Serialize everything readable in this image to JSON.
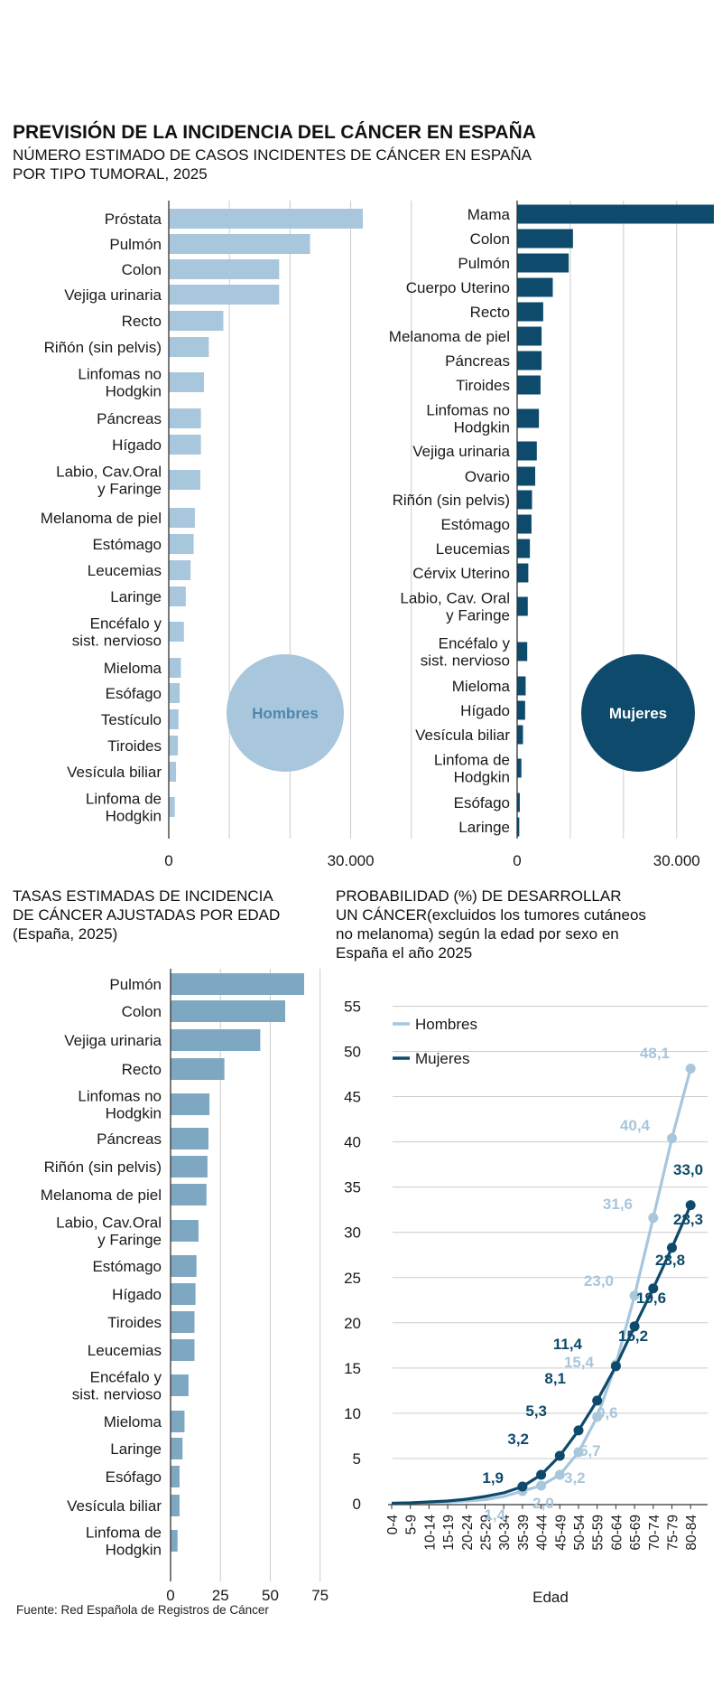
{
  "header": {
    "title": "PREVISIÓN DE LA INCIDENCIA DEL CÁNCER EN ESPAÑA",
    "subtitle": [
      "NÚMERO  ESTIMADO DE CASOS INCIDENTES DE CÁNCER EN ESPAÑA",
      "POR TIPO TUMORAL, 2025"
    ]
  },
  "colors": {
    "hombres": "#a8c6dc",
    "mujeres": "#0e4a6b",
    "tasas": "#7ea7c2",
    "axis": "#333333",
    "grid": "#cccccc"
  },
  "chart_data": [
    {
      "id": "hombres_casos",
      "type": "bar",
      "orientation": "horizontal",
      "badge": "Hombres",
      "categories": [
        "Próstata",
        "Pulmón",
        "Colon",
        "Vejiga urinaria",
        "Recto",
        "Riñón (sin pelvis)",
        "Linfomas no\nHodgkin",
        "Páncreas",
        "Hígado",
        "Labio, Cav.Oral\ny Faringe",
        "Melanoma de piel",
        "Estómago",
        "Leucemias",
        "Laringe",
        "Encéfalo y\nsist. nervioso",
        "Mieloma",
        "Esófago",
        "Testículo",
        "Tiroides",
        "Vesícula biliar",
        "Linfoma de\nHodgkin"
      ],
      "values": [
        32000,
        23300,
        18200,
        18200,
        9000,
        6600,
        5800,
        5300,
        5300,
        5200,
        4300,
        4100,
        3600,
        2800,
        2500,
        2000,
        1800,
        1600,
        1500,
        1200,
        1000
      ],
      "xlim": [
        0,
        45000
      ],
      "ticks": [
        0,
        30000
      ],
      "tick_labels": [
        "0",
        "30.000"
      ],
      "grid": true
    },
    {
      "id": "mujeres_casos",
      "type": "bar",
      "orientation": "horizontal",
      "badge": "Mujeres",
      "categories": [
        "Mama",
        "Colon",
        "Pulmón",
        "Cuerpo Uterino",
        "Recto",
        "Melanoma de piel",
        "Páncreas",
        "Tiroides",
        "Linfomas no\nHodgkin",
        "Vejiga urinaria",
        "Ovario",
        "Riñón (sin pelvis)",
        "Estómago",
        "Leucemias",
        "Cérvix Uterino",
        "Labio, Cav. Oral\ny Faringe",
        "Encéfalo y\nsist. nervioso",
        "Mieloma",
        "Hígado",
        "Vesícula biliar",
        "Linfoma de\nHodgkin",
        "Esófago",
        "Laringe"
      ],
      "values": [
        37000,
        10500,
        9700,
        6700,
        4900,
        4600,
        4600,
        4400,
        4100,
        3700,
        3400,
        2800,
        2700,
        2400,
        2100,
        2000,
        1900,
        1600,
        1500,
        1100,
        800,
        500,
        400
      ],
      "xlim": [
        0,
        45000
      ],
      "ticks": [
        0,
        30000
      ],
      "tick_labels": [
        "0",
        "30.000"
      ],
      "grid": true
    },
    {
      "id": "tasas",
      "type": "bar",
      "orientation": "horizontal",
      "title": [
        "TASAS ESTIMADAS DE INCIDENCIA",
        "DE CÁNCER AJUSTADAS POR EDAD",
        "(España, 2025)"
      ],
      "categories": [
        "Pulmón",
        "Colon",
        "Vejiga urinaria",
        "Recto",
        "Linfomas no\nHodgkin",
        "Páncreas",
        "Riñón (sin pelvis)",
        "Melanoma de piel",
        "Labio, Cav.Oral\ny Faringe",
        "Estómago",
        "Hígado",
        "Tiroides",
        "Leucemias",
        "Encéfalo y\nsist. nervioso",
        "Mieloma",
        "Laringe",
        "Esófago",
        "Vesícula biliar",
        "Linfoma de\nHodgkin"
      ],
      "values": [
        67,
        57.5,
        45,
        27,
        19.5,
        19,
        18.5,
        18,
        14,
        13,
        12.5,
        12,
        12,
        9,
        7,
        6,
        4.5,
        4.5,
        3.5
      ],
      "xlim": [
        0,
        90
      ],
      "ticks": [
        0,
        25,
        50,
        75
      ],
      "tick_labels": [
        "0",
        "25",
        "50",
        "75"
      ],
      "grid": true
    },
    {
      "id": "probabilidad",
      "type": "line",
      "title": [
        "PROBABILIDAD (%) DE DESARROLLAR",
        "UN CÁNCER(excluidos los tumores cutáneos",
        "no melanoma) según la edad por sexo en",
        "España el año 2025"
      ],
      "xlabel": "Edad",
      "x": [
        "0-4",
        "5-9",
        "10-14",
        "15-19",
        "20-24",
        "25-29",
        "30-34",
        "35-39",
        "40-44",
        "45-49",
        "50-54",
        "55-59",
        "60-64",
        "65-69",
        "70-74",
        "75-79",
        "80-84"
      ],
      "ylim": [
        0,
        55
      ],
      "yticks": [
        0,
        5,
        10,
        15,
        20,
        25,
        30,
        35,
        40,
        45,
        50,
        55
      ],
      "grid": true,
      "legend": "top-left",
      "series": [
        {
          "name": "Hombres",
          "values": [
            0.05,
            0.1,
            0.15,
            0.2,
            0.3,
            0.45,
            0.8,
            1.4,
            2.0,
            3.2,
            5.7,
            9.6,
            15.4,
            23.0,
            31.6,
            40.4,
            48.1
          ],
          "labels": [
            "",
            "",
            "",
            "",
            "",
            "",
            "",
            "1,4",
            "2,0",
            "3,2",
            "5,7",
            "9,6",
            "15,4",
            "23,0",
            "31,6",
            "40,4",
            "48,1"
          ]
        },
        {
          "name": "Mujeres",
          "values": [
            0.05,
            0.1,
            0.2,
            0.3,
            0.5,
            0.8,
            1.2,
            1.9,
            3.2,
            5.3,
            8.1,
            11.4,
            15.2,
            19.6,
            23.8,
            28.3,
            33.0
          ],
          "labels": [
            "",
            "",
            "",
            "",
            "",
            "",
            "",
            "1,9",
            "3,2",
            "5,3",
            "8,1",
            "11,4",
            "15,2",
            "19,6",
            "23,8",
            "28,3",
            "33,0"
          ]
        }
      ]
    }
  ],
  "footer": {
    "source": "Fuente: Red Española de Registros de Cáncer"
  }
}
